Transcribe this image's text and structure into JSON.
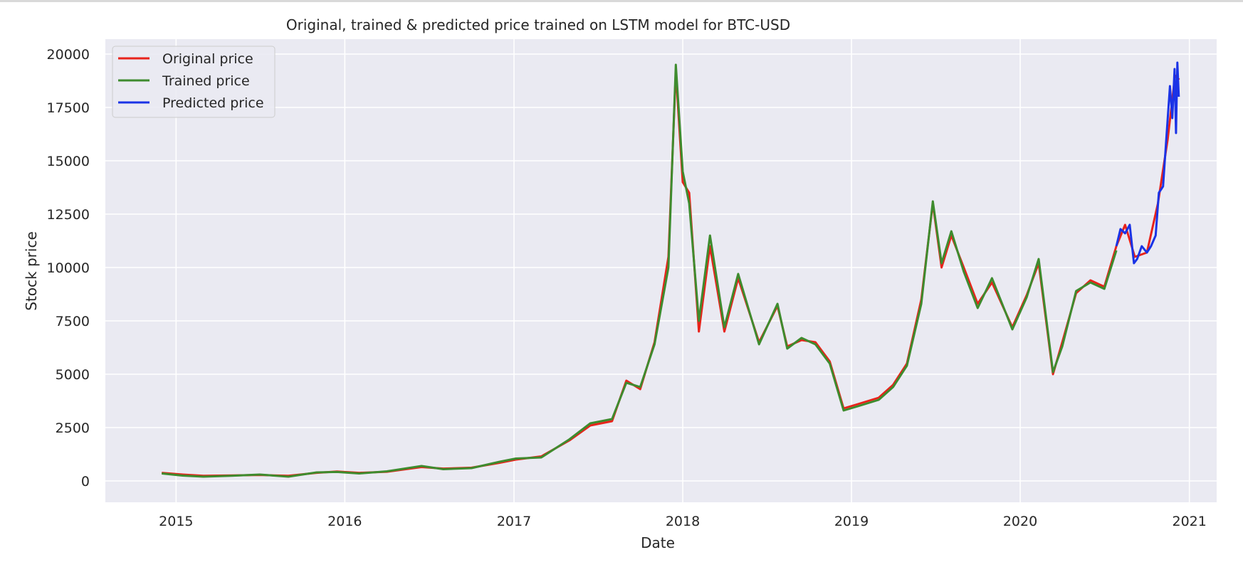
{
  "chart_data": {
    "type": "line",
    "title": "Original, trained & predicted price trained on LSTM model for BTC-USD",
    "xlabel": "Date",
    "ylabel": "Stock price",
    "x_axis_type": "date",
    "xlim": [
      "2014-08-01",
      "2021-03-01"
    ],
    "ylim": [
      -1000,
      20700
    ],
    "x_ticks": [
      "2015",
      "2016",
      "2017",
      "2018",
      "2019",
      "2020",
      "2021"
    ],
    "x_tick_dates": [
      "2015-01-01",
      "2016-01-01",
      "2017-01-01",
      "2018-01-01",
      "2019-01-01",
      "2020-01-01",
      "2021-01-01"
    ],
    "y_ticks": [
      "0",
      "2500",
      "5000",
      "7500",
      "10000",
      "12500",
      "15000",
      "17500",
      "20000"
    ],
    "y_tick_values": [
      0,
      2500,
      5000,
      7500,
      10000,
      12500,
      15000,
      17500,
      20000
    ],
    "grid": true,
    "background": "#eaeaf2",
    "legend_position": "top-left",
    "series": [
      {
        "name": "Original price",
        "color": "#e8231b",
        "x": [
          "2014-12-01",
          "2015-01-15",
          "2015-03-01",
          "2015-05-01",
          "2015-07-01",
          "2015-09-01",
          "2015-11-01",
          "2015-12-15",
          "2016-02-01",
          "2016-04-01",
          "2016-06-15",
          "2016-08-01",
          "2016-10-01",
          "2016-12-01",
          "2017-01-05",
          "2017-03-01",
          "2017-05-01",
          "2017-06-15",
          "2017-08-01",
          "2017-09-01",
          "2017-10-01",
          "2017-11-01",
          "2017-12-01",
          "2017-12-17",
          "2018-01-01",
          "2018-01-15",
          "2018-02-05",
          "2018-03-01",
          "2018-04-01",
          "2018-05-01",
          "2018-06-15",
          "2018-07-25",
          "2018-08-15",
          "2018-09-15",
          "2018-10-15",
          "2018-11-15",
          "2018-12-15",
          "2019-01-15",
          "2019-03-01",
          "2019-04-01",
          "2019-05-01",
          "2019-06-01",
          "2019-06-26",
          "2019-07-15",
          "2019-08-05",
          "2019-09-01",
          "2019-10-01",
          "2019-11-01",
          "2019-12-15",
          "2020-01-15",
          "2020-02-10",
          "2020-03-12",
          "2020-04-01",
          "2020-05-01",
          "2020-06-01",
          "2020-07-01",
          "2020-07-27",
          "2020-08-15",
          "2020-09-05",
          "2020-10-01",
          "2020-10-25",
          "2020-11-15",
          "2020-12-01",
          "2020-12-10"
        ],
        "values": [
          380,
          300,
          240,
          260,
          280,
          240,
          380,
          440,
          380,
          430,
          650,
          580,
          620,
          850,
          1000,
          1150,
          1900,
          2600,
          2800,
          4700,
          4300,
          6500,
          10500,
          19200,
          14000,
          13500,
          7000,
          11000,
          7000,
          9500,
          6500,
          8200,
          6300,
          6600,
          6500,
          5600,
          3400,
          3600,
          3900,
          4500,
          5500,
          8500,
          13000,
          10000,
          11500,
          10000,
          8300,
          9300,
          7200,
          8700,
          10200,
          5000,
          6500,
          8800,
          9400,
          9100,
          11000,
          12000,
          10500,
          10700,
          13000,
          16000,
          19000,
          18800
        ]
      },
      {
        "name": "Trained price",
        "color": "#3e8b2e",
        "x": [
          "2014-12-01",
          "2015-01-15",
          "2015-03-01",
          "2015-05-01",
          "2015-07-01",
          "2015-09-01",
          "2015-11-01",
          "2015-12-15",
          "2016-02-01",
          "2016-04-01",
          "2016-06-15",
          "2016-08-01",
          "2016-10-01",
          "2016-12-01",
          "2017-01-05",
          "2017-03-01",
          "2017-05-01",
          "2017-06-15",
          "2017-08-01",
          "2017-09-01",
          "2017-10-01",
          "2017-11-01",
          "2017-12-01",
          "2017-12-17",
          "2018-01-01",
          "2018-01-15",
          "2018-02-05",
          "2018-03-01",
          "2018-04-01",
          "2018-05-01",
          "2018-06-15",
          "2018-07-25",
          "2018-08-15",
          "2018-09-15",
          "2018-10-15",
          "2018-11-15",
          "2018-12-15",
          "2019-01-15",
          "2019-03-01",
          "2019-04-01",
          "2019-05-01",
          "2019-06-01",
          "2019-06-26",
          "2019-07-15",
          "2019-08-05",
          "2019-09-01",
          "2019-10-01",
          "2019-11-01",
          "2019-12-15",
          "2020-01-15",
          "2020-02-10",
          "2020-03-12",
          "2020-04-01",
          "2020-05-01",
          "2020-06-01",
          "2020-07-01",
          "2020-07-27"
        ],
        "values": [
          350,
          250,
          200,
          240,
          300,
          200,
          400,
          420,
          350,
          450,
          700,
          550,
          600,
          900,
          1050,
          1100,
          1950,
          2700,
          2900,
          4600,
          4400,
          6400,
          10000,
          19500,
          14500,
          13000,
          7500,
          11500,
          7200,
          9700,
          6400,
          8300,
          6200,
          6700,
          6400,
          5500,
          3300,
          3500,
          3800,
          4400,
          5400,
          8300,
          13100,
          10200,
          11700,
          9800,
          8100,
          9500,
          7100,
          8600,
          10400,
          5100,
          6300,
          8900,
          9300,
          9000,
          10800
        ]
      },
      {
        "name": "Predicted price",
        "color": "#1a33e6",
        "x": [
          "2020-07-27",
          "2020-08-05",
          "2020-08-15",
          "2020-08-25",
          "2020-09-03",
          "2020-09-10",
          "2020-09-20",
          "2020-10-01",
          "2020-10-10",
          "2020-10-20",
          "2020-10-27",
          "2020-11-05",
          "2020-11-12",
          "2020-11-20",
          "2020-11-25",
          "2020-11-30",
          "2020-12-03",
          "2020-12-06",
          "2020-12-09"
        ],
        "values": [
          11000,
          11800,
          11600,
          12000,
          10200,
          10400,
          11000,
          10700,
          11000,
          11500,
          13500,
          13800,
          16000,
          18500,
          17000,
          19300,
          16300,
          19600,
          18000
        ]
      }
    ]
  }
}
